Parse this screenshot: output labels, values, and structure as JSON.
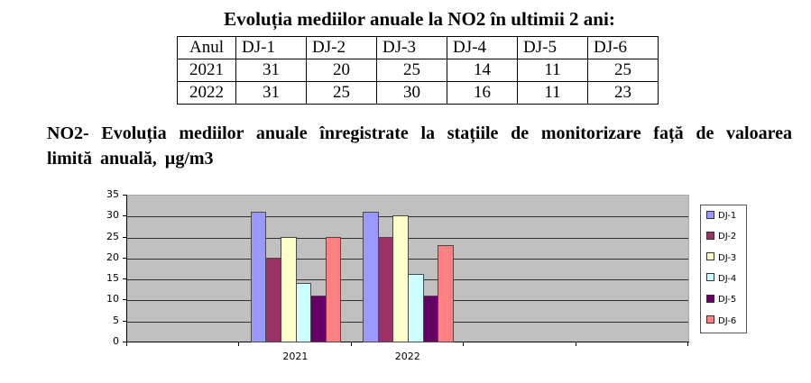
{
  "table": {
    "title": "Evoluția mediilor anuale la NO2 în ultimii 2 ani:",
    "headers": [
      "Anul",
      "DJ-1",
      "DJ-2",
      "DJ-3",
      "DJ-4",
      "DJ-5",
      "DJ-6"
    ],
    "rows": [
      [
        "2021",
        "31",
        "20",
        "25",
        "14",
        "11",
        "25"
      ],
      [
        "2022",
        "31",
        "25",
        "30",
        "16",
        "11",
        "23"
      ]
    ]
  },
  "chart_heading": {
    "lead": "NO2",
    "text": "- Evoluția mediilor anuale înregistrate la  stațiile de monitorizare față de valoarea limită anuală, µg/m3"
  },
  "chart_data": {
    "type": "bar",
    "title": "NO2- Evoluția mediilor anuale înregistrate la stațiile de monitorizare față de valoarea limită anuală, µg/m3",
    "xlabel": "",
    "ylabel": "",
    "categories": [
      "",
      "2021",
      "2022",
      "",
      ""
    ],
    "series": [
      {
        "name": "DJ-1",
        "color": "#9999ff",
        "values": [
          null,
          31,
          31,
          null,
          null
        ]
      },
      {
        "name": "DJ-2",
        "color": "#993366",
        "values": [
          null,
          20,
          25,
          null,
          null
        ]
      },
      {
        "name": "DJ-3",
        "color": "#ffffcc",
        "values": [
          null,
          25,
          30,
          null,
          null
        ]
      },
      {
        "name": "DJ-4",
        "color": "#ccffff",
        "values": [
          null,
          14,
          16,
          null,
          null
        ]
      },
      {
        "name": "DJ-5",
        "color": "#660066",
        "values": [
          null,
          11,
          11,
          null,
          null
        ]
      },
      {
        "name": "DJ-6",
        "color": "#ff8080",
        "values": [
          null,
          25,
          23,
          null,
          null
        ]
      }
    ],
    "ylim": [
      0,
      35
    ],
    "yticks": [
      0,
      5,
      10,
      15,
      20,
      25,
      30,
      35
    ],
    "grid": true,
    "plot_background": "#c0c0c0",
    "legend_position": "right"
  }
}
